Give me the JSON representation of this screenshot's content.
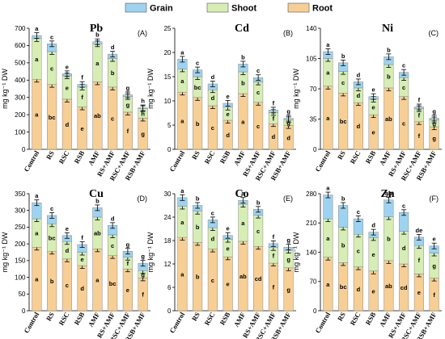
{
  "legend": {
    "items": [
      {
        "label": "Grain",
        "color": "#9dd3f0"
      },
      {
        "label": "Shoot",
        "color": "#d6edb4"
      },
      {
        "label": "Root",
        "color": "#f7cf94"
      }
    ]
  },
  "y_axis_label": "mg kg⁻¹ DW",
  "chart_data": [
    {
      "type": "bar",
      "stacked": true,
      "title": "Pb",
      "tag": "(A)",
      "categories": [
        "Control",
        "RS",
        "RSC",
        "RSB",
        "AMF",
        "RS+AMF",
        "RSC+AMF",
        "RSB+AMF"
      ],
      "ylim": [
        0,
        700
      ],
      "yticks": [
        0,
        100,
        200,
        300,
        400,
        500,
        600,
        700
      ],
      "series": [
        {
          "name": "Root",
          "values": [
            405,
            375,
            290,
            245,
            390,
            360,
            215,
            180
          ],
          "letters": [
            "a",
            "bc",
            "d",
            "e",
            "ab",
            "c",
            "f",
            "g"
          ]
        },
        {
          "name": "Shoot",
          "values": [
            235,
            190,
            135,
            115,
            220,
            165,
            90,
            55
          ],
          "letters": [
            "a",
            "c",
            "e",
            "f",
            "a",
            "b",
            "g",
            "h"
          ]
        },
        {
          "name": "Grain",
          "values": [
            18,
            45,
            12,
            15,
            12,
            25,
            10,
            5
          ],
          "letters": [
            "a",
            "c",
            "e",
            "f",
            "b",
            "d",
            "g",
            "h"
          ]
        }
      ]
    },
    {
      "type": "bar",
      "stacked": true,
      "title": "Cd",
      "tag": "(B)",
      "categories": [
        "Control",
        "RS",
        "RSC",
        "RSB",
        "AMF",
        "RS+AMF",
        "RSC+AMF",
        "RSB+AMF"
      ],
      "ylim": [
        0,
        25
      ],
      "yticks": [
        0,
        5,
        10,
        15,
        20,
        25
      ],
      "series": [
        {
          "name": "Root",
          "values": [
            11.8,
            10.7,
            9.0,
            6.0,
            11.5,
            9.7,
            5.3,
            4.9
          ],
          "letters": [
            "a",
            "b",
            "c",
            "d",
            "a",
            "c",
            "d",
            "d"
          ]
        },
        {
          "name": "Shoot",
          "values": [
            4.8,
            4.3,
            3.3,
            2.7,
            4.5,
            4.2,
            2.3,
            1.2
          ],
          "letters": [
            "a",
            "bc",
            "d",
            "e",
            "b",
            "c",
            "f",
            "g"
          ]
        },
        {
          "name": "Grain",
          "values": [
            2.0,
            1.4,
            1.2,
            0.8,
            1.6,
            0.9,
            0.5,
            0.3
          ],
          "letters": [
            "a",
            "c",
            "d",
            "e",
            "b",
            "c",
            "f",
            "g"
          ]
        }
      ]
    },
    {
      "type": "bar",
      "stacked": true,
      "title": "Ni",
      "tag": "(C)",
      "categories": [
        "Control",
        "RS",
        "RSC",
        "RSB",
        "AMF",
        "RS+AMF",
        "RSC+AMF",
        "RSB+AMF"
      ],
      "ylim": [
        0,
        140
      ],
      "yticks": [
        0,
        35,
        70,
        105,
        140
      ],
      "series": [
        {
          "name": "Root",
          "values": [
            73,
            65,
            54,
            40,
            71,
            61,
            32,
            26
          ],
          "letters": [
            "a",
            "bc",
            "d",
            "e",
            "ab",
            "c",
            "f",
            "g"
          ]
        },
        {
          "name": "Shoot",
          "values": [
            32,
            25,
            17,
            18,
            27,
            22,
            15,
            8
          ],
          "letters": [
            "a",
            "c",
            "d",
            "e",
            "b",
            "c",
            "f",
            "g"
          ]
        },
        {
          "name": "Grain",
          "values": [
            8,
            10,
            7,
            3,
            9,
            6,
            2,
            2
          ],
          "letters": [
            "a",
            "b",
            "d",
            "e",
            "b",
            "c",
            "f",
            "g"
          ]
        }
      ]
    },
    {
      "type": "bar",
      "stacked": true,
      "title": "Cu",
      "tag": "(D)",
      "categories": [
        "Control",
        "RS",
        "RSC",
        "RSB",
        "AMF",
        "RS+AMF",
        "RSC+AMF",
        "RSB+AMF"
      ],
      "ylim": [
        0,
        350
      ],
      "yticks": [
        0,
        50,
        100,
        150,
        200,
        250,
        300,
        350
      ],
      "series": [
        {
          "name": "Root",
          "values": [
            190,
            178,
            155,
            135,
            185,
            165,
            125,
            98
          ],
          "letters": [
            "a",
            "b",
            "c",
            "d",
            "a",
            "bc",
            "e",
            "f"
          ]
        },
        {
          "name": "Shoot",
          "values": [
            85,
            82,
            52,
            40,
            95,
            62,
            35,
            22
          ],
          "letters": [
            "a",
            "bc",
            "d",
            "e",
            "ab",
            "c",
            "f",
            "g"
          ]
        },
        {
          "name": "Grain",
          "values": [
            48,
            25,
            18,
            23,
            28,
            28,
            18,
            22
          ],
          "letters": [
            "a",
            "c",
            "e",
            "f",
            "b",
            "d",
            "g",
            "g"
          ]
        }
      ]
    },
    {
      "type": "bar",
      "stacked": true,
      "title": "Co",
      "tag": "(E)",
      "categories": [
        "Control",
        "RS",
        "RSC",
        "RSB",
        "AMF",
        "RS+AMF",
        "RSC+AMF",
        "RSB+AMF"
      ],
      "ylim": [
        0,
        30
      ],
      "yticks": [
        0,
        6,
        12,
        18,
        24,
        30
      ],
      "series": [
        {
          "name": "Root",
          "values": [
            18.8,
            17.5,
            15.8,
            13.8,
            17.8,
            16.5,
            12.2,
            11.0
          ],
          "letters": [
            "a",
            "b",
            "c",
            "e",
            "ab",
            "cd",
            "f",
            "g"
          ]
        },
        {
          "name": "Shoot",
          "values": [
            8.0,
            8.0,
            5.5,
            4.5,
            9.5,
            8.0,
            4.0,
            4.5
          ],
          "letters": [
            "a",
            "b",
            "d",
            "e",
            "a",
            "c",
            "f",
            "g"
          ]
        },
        {
          "name": "Grain",
          "values": [
            2.2,
            1.5,
            2.0,
            1.0,
            1.0,
            1.5,
            1.0,
            0.8
          ],
          "letters": [
            "a",
            "b",
            "c",
            "e",
            "a",
            "b",
            "f",
            "g"
          ]
        }
      ]
    },
    {
      "type": "bar",
      "stacked": true,
      "title": "Zn",
      "tag": "(F)",
      "categories": [
        "Control",
        "RS",
        "RSC",
        "RSB",
        "AMF",
        "RS+AMF",
        "RSC+AMF",
        "RSB+AMF"
      ],
      "ylim": [
        0,
        280
      ],
      "yticks": [
        0,
        70,
        140,
        210,
        280
      ],
      "series": [
        {
          "name": "Root",
          "values": [
            128,
            115,
            105,
            95,
            120,
            112,
            88,
            78
          ],
          "letters": [
            "a",
            "bc",
            "d",
            "e",
            "ab",
            "cd",
            "e",
            "f"
          ]
        },
        {
          "name": "Shoot",
          "values": [
            92,
            85,
            78,
            80,
            105,
            78,
            68,
            60
          ],
          "letters": [
            "a",
            "b",
            "c",
            "e",
            "b",
            "d",
            "f",
            "g"
          ]
        },
        {
          "name": "Grain",
          "values": [
            57,
            52,
            37,
            13,
            40,
            45,
            20,
            17
          ],
          "letters": [
            "a",
            "b",
            "c",
            "d",
            "ab",
            "c",
            "de",
            "e"
          ]
        }
      ]
    }
  ]
}
